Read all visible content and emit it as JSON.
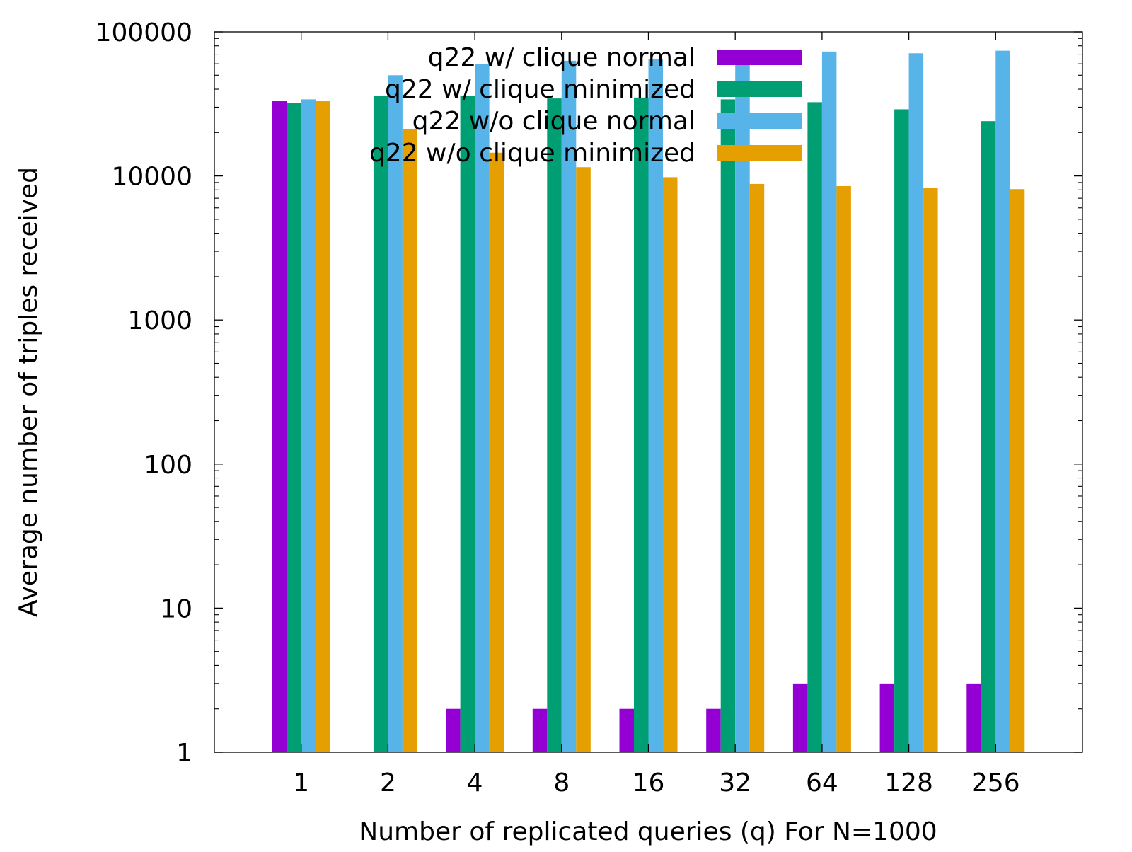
{
  "chart_data": {
    "type": "bar",
    "title": "",
    "xlabel": "Number of replicated queries (q) For N=1000",
    "ylabel": "Average number of triples received",
    "yscale": "log",
    "ylim": [
      1,
      100000
    ],
    "yticks": [
      1,
      10,
      100,
      1000,
      10000,
      100000
    ],
    "ytick_labels": [
      "1",
      "10",
      "100",
      "1000",
      "10000",
      "100000"
    ],
    "categories": [
      "1",
      "2",
      "4",
      "8",
      "16",
      "32",
      "64",
      "128",
      "256"
    ],
    "grid": false,
    "legend_position": "top-right",
    "series": [
      {
        "name": "q22 w/ clique normal",
        "color": "#9400d3",
        "values": [
          33000,
          1,
          2,
          2,
          2,
          2,
          3,
          3,
          3
        ]
      },
      {
        "name": "q22 w/ clique minimized",
        "color": "#009e73",
        "values": [
          32000,
          36000,
          36000,
          34500,
          35000,
          34000,
          32500,
          29000,
          24000
        ]
      },
      {
        "name": "q22 w/o clique normal",
        "color": "#56b4e9",
        "values": [
          34000,
          50000,
          60000,
          63000,
          65000,
          67000,
          73000,
          71000,
          74000
        ]
      },
      {
        "name": "q22 w/o clique minimized",
        "color": "#e69f00",
        "values": [
          33000,
          21000,
          14500,
          11500,
          9800,
          8800,
          8500,
          8300,
          8100
        ]
      }
    ]
  }
}
